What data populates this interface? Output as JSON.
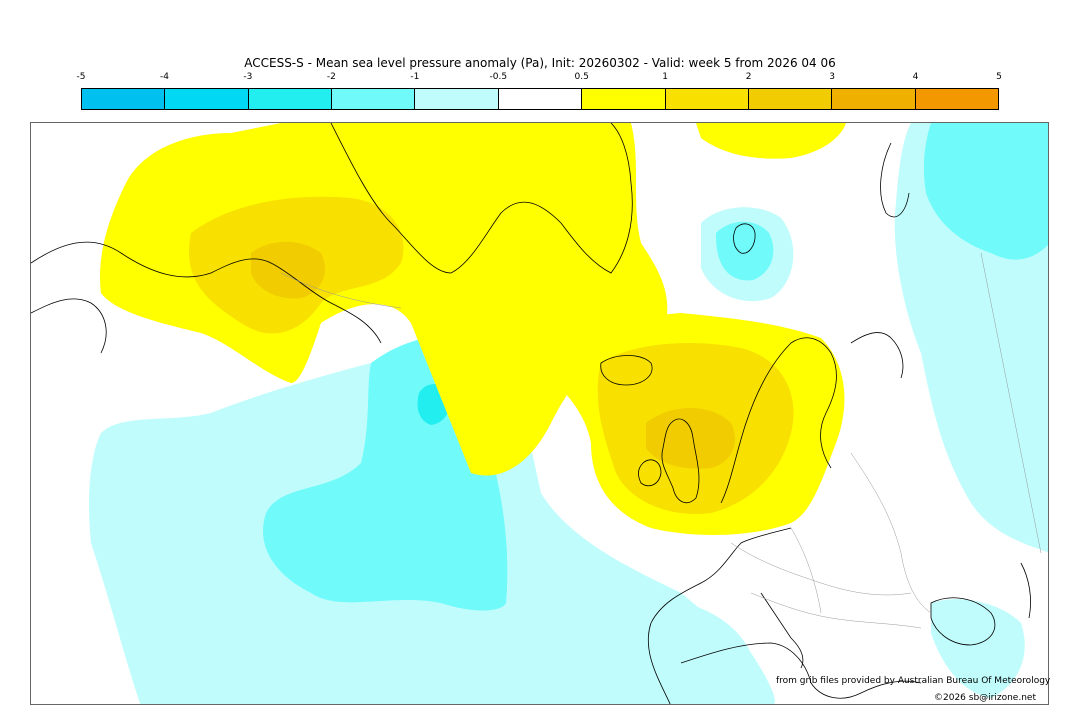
{
  "header": {
    "title": "ACCESS-S - Mean sea level pressure anomaly (Pa), Init: 20260302 - Valid: week 5 from 2026 04 06"
  },
  "legend": {
    "ticks": [
      "-5",
      "-4",
      "-3",
      "-2",
      "-1",
      "-0.5",
      "0.5",
      "1",
      "2",
      "3",
      "4",
      "5"
    ],
    "colors": [
      "#00c0f0",
      "#00d8f4",
      "#22eef0",
      "#70fafa",
      "#c0fcfc",
      "#ffffff",
      "#ffff00",
      "#f8e000",
      "#f0cc00",
      "#f0b000",
      "#f49800"
    ]
  },
  "map": {
    "region": "North Atlantic / Arctic / Europe"
  },
  "footer": {
    "source": "from grib files provided by Australian Bureau Of Meteorology",
    "copyright": "©2026 sb@irizone.net"
  }
}
